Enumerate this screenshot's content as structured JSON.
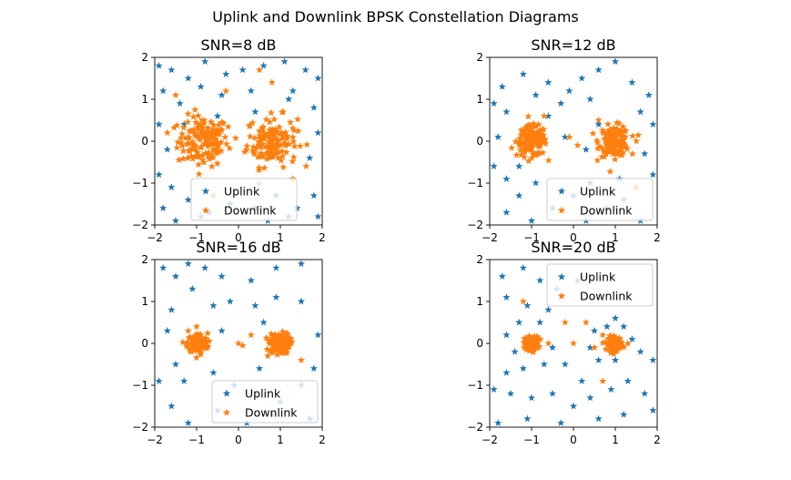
{
  "figure": {
    "suptitle": "Uplink and Downlink BPSK Constellation Diagrams"
  },
  "chart_data": [
    {
      "type": "scatter",
      "title": "SNR=8 dB",
      "xlim": [
        -2,
        2
      ],
      "ylim": [
        -2,
        2
      ],
      "xticks": [
        "−2",
        "−1",
        "0",
        "1",
        "2"
      ],
      "yticks": [
        "−2",
        "−1",
        "0",
        "1",
        "2"
      ],
      "marker": "star",
      "legend_position": "lower-center",
      "downlink_spread": 0.3,
      "series": [
        {
          "name": "Uplink",
          "color": "#1f77b4",
          "points": [
            [
              -1.9,
              1.8
            ],
            [
              -1.6,
              1.7
            ],
            [
              -1.2,
              1.5
            ],
            [
              -0.8,
              1.9
            ],
            [
              -0.3,
              1.6
            ],
            [
              0.1,
              1.7
            ],
            [
              0.6,
              1.8
            ],
            [
              1.1,
              1.9
            ],
            [
              1.6,
              1.7
            ],
            [
              1.9,
              1.5
            ],
            [
              -1.8,
              1.2
            ],
            [
              -1.4,
              0.9
            ],
            [
              -0.9,
              1.3
            ],
            [
              -0.4,
              1.1
            ],
            [
              0.3,
              1.2
            ],
            [
              1.3,
              1.2
            ],
            [
              1.8,
              0.8
            ],
            [
              -1.9,
              0.4
            ],
            [
              -1.7,
              -0.2
            ],
            [
              1.9,
              0.2
            ],
            [
              1.7,
              -0.4
            ],
            [
              -1.9,
              -0.8
            ],
            [
              -1.6,
              -1.1
            ],
            [
              -1.2,
              -1.4
            ],
            [
              -0.7,
              -1.7
            ],
            [
              -0.2,
              -1.5
            ],
            [
              0.4,
              -1.6
            ],
            [
              0.9,
              -1.3
            ],
            [
              1.4,
              -1.6
            ],
            [
              1.8,
              -1.3
            ],
            [
              -1.8,
              -1.6
            ],
            [
              -1.5,
              -1.9
            ],
            [
              -0.9,
              -1.8
            ],
            [
              0.7,
              -1.9
            ],
            [
              1.2,
              -1.8
            ],
            [
              1.9,
              -1.8
            ],
            [
              -1.3,
              0.4
            ],
            [
              1.2,
              1.0
            ],
            [
              -0.5,
              0.6
            ],
            [
              0.4,
              0.7
            ]
          ]
        },
        {
          "name": "Downlink",
          "color": "#ff7f0e",
          "centers": [
            [
              -0.85,
              0.0
            ],
            [
              0.8,
              0.0
            ]
          ],
          "extra": [
            [
              -1.5,
              1.1
            ],
            [
              -0.3,
              1.2
            ],
            [
              0.5,
              1.7
            ],
            [
              0.8,
              1.4
            ],
            [
              -0.6,
              -1.3
            ],
            [
              1.3,
              -0.9
            ],
            [
              -1.7,
              0.2
            ]
          ]
        }
      ]
    },
    {
      "type": "scatter",
      "title": "SNR=12 dB",
      "xlim": [
        -2,
        2
      ],
      "ylim": [
        -2,
        2
      ],
      "xticks": [
        "−2",
        "−1",
        "0",
        "1",
        "2"
      ],
      "yticks": [
        "−2",
        "−1",
        "0",
        "1",
        "2"
      ],
      "marker": "star",
      "legend_position": "lower-right",
      "downlink_spread": 0.18,
      "series": [
        {
          "name": "Uplink",
          "color": "#1f77b4",
          "points": [
            [
              -1.9,
              0.9
            ],
            [
              -1.7,
              1.3
            ],
            [
              -1.2,
              1.6
            ],
            [
              -0.9,
              1.1
            ],
            [
              -0.6,
              1.4
            ],
            [
              -0.1,
              1.2
            ],
            [
              0.2,
              1.5
            ],
            [
              0.6,
              1.7
            ],
            [
              1.0,
              1.9
            ],
            [
              1.4,
              1.4
            ],
            [
              1.8,
              1.1
            ],
            [
              -1.6,
              0.7
            ],
            [
              -0.6,
              0.6
            ],
            [
              -0.3,
              0.9
            ],
            [
              0.4,
              1.0
            ],
            [
              1.6,
              0.7
            ],
            [
              -1.8,
              0.1
            ],
            [
              -1.9,
              -0.6
            ],
            [
              -1.6,
              -0.9
            ],
            [
              -1.3,
              -1.3
            ],
            [
              -0.9,
              -1.0
            ],
            [
              -0.5,
              -1.6
            ],
            [
              0.0,
              -1.3
            ],
            [
              0.4,
              -1.0
            ],
            [
              0.8,
              -1.6
            ],
            [
              1.2,
              -1.4
            ],
            [
              1.6,
              -1.9
            ],
            [
              1.9,
              -0.8
            ],
            [
              1.7,
              -0.3
            ],
            [
              -1.6,
              -1.7
            ],
            [
              -1.0,
              -1.9
            ],
            [
              0.3,
              -1.9
            ],
            [
              1.1,
              -0.9
            ],
            [
              -0.2,
              0.1
            ],
            [
              0.3,
              -0.2
            ],
            [
              -1.3,
              -0.6
            ],
            [
              1.9,
              0.4
            ],
            [
              0.6,
              0.4
            ]
          ]
        },
        {
          "name": "Downlink",
          "color": "#ff7f0e",
          "centers": [
            [
              -1.0,
              0.0
            ],
            [
              0.98,
              0.0
            ]
          ],
          "extra": [
            [
              -0.7,
              0.6
            ],
            [
              0.6,
              0.5
            ],
            [
              -0.1,
              0.1
            ],
            [
              0.1,
              -0.1
            ],
            [
              1.5,
              -1.1
            ],
            [
              1.5,
              0.0
            ]
          ]
        }
      ]
    },
    {
      "type": "scatter",
      "title": "SNR=16 dB",
      "xlim": [
        -2,
        2
      ],
      "ylim": [
        -2,
        2
      ],
      "xticks": [
        "−2",
        "−1",
        "0",
        "1",
        "2"
      ],
      "yticks": [
        "−2",
        "−1",
        "0",
        "1",
        "2"
      ],
      "marker": "star",
      "legend_position": "lower-right",
      "downlink_spread": 0.12,
      "series": [
        {
          "name": "Uplink",
          "color": "#1f77b4",
          "points": [
            [
              -1.8,
              1.8
            ],
            [
              -1.5,
              1.6
            ],
            [
              -1.2,
              1.9
            ],
            [
              -0.8,
              1.8
            ],
            [
              -0.4,
              1.6
            ],
            [
              0.3,
              1.5
            ],
            [
              0.9,
              1.8
            ],
            [
              1.5,
              1.9
            ],
            [
              -1.6,
              0.8
            ],
            [
              -1.1,
              1.3
            ],
            [
              -0.6,
              0.9
            ],
            [
              -0.2,
              1.0
            ],
            [
              0.4,
              0.9
            ],
            [
              0.9,
              1.1
            ],
            [
              1.5,
              1.0
            ],
            [
              -1.7,
              0.3
            ],
            [
              -1.5,
              -0.5
            ],
            [
              -1.9,
              -0.9
            ],
            [
              -1.6,
              -1.5
            ],
            [
              -1.2,
              -1.9
            ],
            [
              -0.6,
              -0.7
            ],
            [
              -0.1,
              -1.0
            ],
            [
              0.5,
              -0.6
            ],
            [
              1.0,
              -1.4
            ],
            [
              1.5,
              -1.0
            ],
            [
              1.8,
              -0.6
            ],
            [
              1.9,
              0.2
            ],
            [
              -0.5,
              -1.6
            ],
            [
              0.2,
              -1.9
            ],
            [
              0.8,
              -1.7
            ],
            [
              -0.4,
              0.3
            ],
            [
              0.6,
              0.5
            ],
            [
              -1.3,
              -0.9
            ],
            [
              1.7,
              -1.8
            ]
          ]
        },
        {
          "name": "Downlink",
          "color": "#ff7f0e",
          "centers": [
            [
              -0.98,
              0.0
            ],
            [
              0.98,
              0.0
            ]
          ],
          "extra": [
            [
              -1.2,
              0.3
            ],
            [
              -1.0,
              0.4
            ],
            [
              0.0,
              0.0
            ],
            [
              0.3,
              0.2
            ],
            [
              0.7,
              -0.3
            ],
            [
              1.5,
              -0.4
            ],
            [
              0.1,
              -0.05
            ]
          ]
        }
      ]
    },
    {
      "type": "scatter",
      "title": "SNR=20 dB",
      "xlim": [
        -2,
        2
      ],
      "ylim": [
        -2,
        2
      ],
      "xticks": [
        "−2",
        "−1",
        "0",
        "1",
        "2"
      ],
      "yticks": [
        "−2",
        "−1",
        "0",
        "1",
        "2"
      ],
      "marker": "star",
      "legend_position": "upper-right",
      "downlink_spread": 0.08,
      "series": [
        {
          "name": "Uplink",
          "color": "#1f77b4",
          "points": [
            [
              -1.7,
              1.6
            ],
            [
              -1.2,
              1.8
            ],
            [
              -0.8,
              1.5
            ],
            [
              -0.4,
              1.3
            ],
            [
              0.1,
              1.5
            ],
            [
              -1.6,
              1.1
            ],
            [
              -1.1,
              0.9
            ],
            [
              -0.6,
              0.8
            ],
            [
              -1.3,
              0.5
            ],
            [
              -0.8,
              0.5
            ],
            [
              -1.6,
              0.2
            ],
            [
              -1.4,
              -0.2
            ],
            [
              -0.5,
              -0.1
            ],
            [
              -0.7,
              -0.5
            ],
            [
              -1.2,
              -0.6
            ],
            [
              -1.6,
              -0.7
            ],
            [
              -1.9,
              -1.1
            ],
            [
              -1.5,
              -1.2
            ],
            [
              -1.0,
              -1.3
            ],
            [
              -0.5,
              -1.2
            ],
            [
              0.0,
              -1.5
            ],
            [
              0.4,
              -1.3
            ],
            [
              0.9,
              -1.1
            ],
            [
              1.3,
              -0.9
            ],
            [
              1.7,
              -1.2
            ],
            [
              1.9,
              -1.6
            ],
            [
              -1.8,
              -1.9
            ],
            [
              -1.1,
              -1.8
            ],
            [
              -0.3,
              -1.9
            ],
            [
              0.6,
              -1.8
            ],
            [
              1.2,
              -1.7
            ],
            [
              0.5,
              0.3
            ],
            [
              0.8,
              0.4
            ],
            [
              1.2,
              0.4
            ],
            [
              1.4,
              0.1
            ],
            [
              1.6,
              -0.2
            ],
            [
              0.6,
              -0.4
            ],
            [
              1.0,
              -0.4
            ],
            [
              0.4,
              -0.1
            ],
            [
              1.9,
              -0.4
            ],
            [
              0.2,
              -0.9
            ],
            [
              -0.2,
              -0.5
            ],
            [
              1.0,
              0.6
            ]
          ]
        },
        {
          "name": "Downlink",
          "color": "#ff7f0e",
          "centers": [
            [
              -1.0,
              0.0
            ],
            [
              1.0,
              0.0
            ]
          ],
          "extra": [
            [
              -1.2,
              1.0
            ],
            [
              -0.2,
              0.5
            ],
            [
              0.0,
              0.0
            ],
            [
              0.3,
              0.5
            ],
            [
              0.7,
              0.2
            ],
            [
              0.5,
              -0.1
            ],
            [
              -0.6,
              0.0
            ],
            [
              1.3,
              0.0
            ],
            [
              0.7,
              -0.9
            ]
          ]
        }
      ]
    }
  ]
}
